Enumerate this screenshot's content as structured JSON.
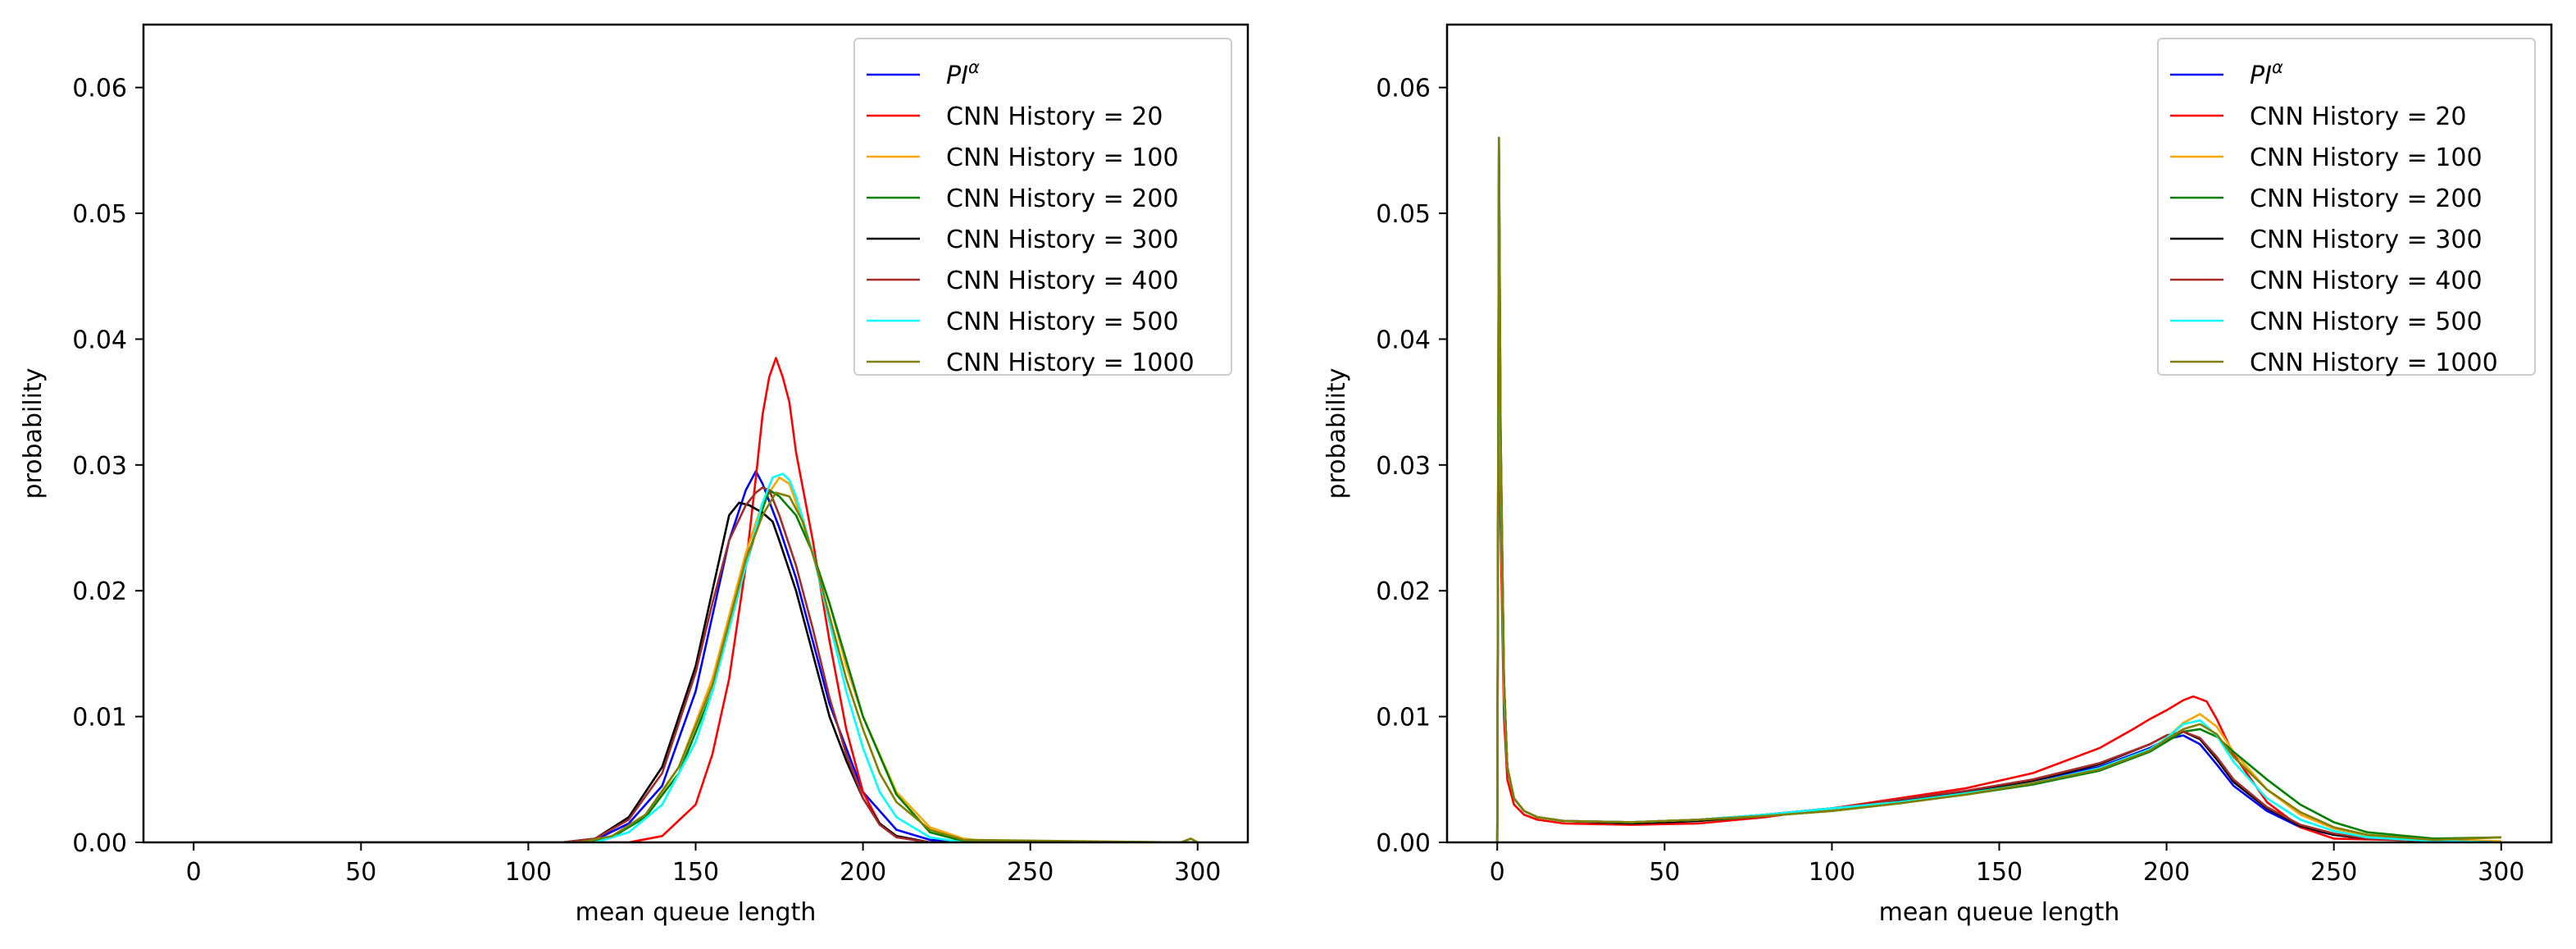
{
  "chart_data": [
    {
      "type": "line",
      "xlabel": "mean queue length",
      "ylabel": "probability",
      "xlim": [
        -15,
        315
      ],
      "ylim": [
        0,
        0.065
      ],
      "xticks": [
        0,
        50,
        100,
        150,
        200,
        250,
        300
      ],
      "yticks": [
        0.0,
        0.01,
        0.02,
        0.03,
        0.04,
        0.05,
        0.06
      ],
      "xtick_labels": [
        "0",
        "50",
        "100",
        "150",
        "200",
        "250",
        "300"
      ],
      "ytick_labels": [
        "0.00",
        "0.01",
        "0.02",
        "0.03",
        "0.04",
        "0.05",
        "0.06"
      ],
      "grid": false,
      "legend_position": "upper-right",
      "series": [
        {
          "name": "PIα",
          "legend_main": "PI",
          "legend_sup": "α",
          "color": "#0000ff",
          "x": [
            0,
            110,
            120,
            130,
            140,
            150,
            155,
            160,
            165,
            168,
            170,
            175,
            180,
            185,
            190,
            200,
            210,
            220,
            230,
            300
          ],
          "y": [
            0,
            0,
            0.0002,
            0.0015,
            0.0045,
            0.012,
            0.018,
            0.024,
            0.028,
            0.0295,
            0.0285,
            0.025,
            0.021,
            0.016,
            0.011,
            0.004,
            0.001,
            0.0002,
            0,
            0
          ]
        },
        {
          "name": "CNN History = 20",
          "color": "#ff0000",
          "x": [
            0,
            130,
            140,
            150,
            155,
            160,
            165,
            168,
            170,
            172,
            174,
            176,
            178,
            180,
            185,
            190,
            195,
            200,
            205,
            210,
            220,
            300
          ],
          "y": [
            0,
            0,
            0.0005,
            0.003,
            0.007,
            0.013,
            0.022,
            0.029,
            0.034,
            0.037,
            0.0385,
            0.037,
            0.035,
            0.031,
            0.024,
            0.016,
            0.009,
            0.004,
            0.0015,
            0.0005,
            0,
            0
          ]
        },
        {
          "name": "CNN History = 100",
          "color": "#ffa500",
          "x": [
            0,
            115,
            125,
            135,
            145,
            155,
            160,
            165,
            170,
            175,
            178,
            180,
            185,
            190,
            195,
            200,
            210,
            220,
            230,
            240,
            300
          ],
          "y": [
            0,
            0,
            0.0004,
            0.002,
            0.006,
            0.013,
            0.018,
            0.023,
            0.027,
            0.029,
            0.0285,
            0.027,
            0.023,
            0.019,
            0.014,
            0.01,
            0.004,
            0.0012,
            0.0003,
            0,
            0
          ]
        },
        {
          "name": "CNN History = 200",
          "color": "#008000",
          "x": [
            0,
            115,
            125,
            135,
            145,
            155,
            160,
            165,
            170,
            172,
            175,
            180,
            185,
            190,
            195,
            200,
            210,
            220,
            230,
            300
          ],
          "y": [
            0,
            0,
            0.0004,
            0.002,
            0.0055,
            0.012,
            0.017,
            0.022,
            0.0265,
            0.028,
            0.0275,
            0.026,
            0.023,
            0.019,
            0.0145,
            0.01,
            0.0038,
            0.0008,
            0.0001,
            0
          ]
        },
        {
          "name": "CNN History = 300",
          "color": "#000000",
          "x": [
            0,
            110,
            120,
            130,
            140,
            150,
            155,
            160,
            163,
            166,
            170,
            173,
            175,
            180,
            185,
            190,
            195,
            200,
            205,
            210,
            220,
            300
          ],
          "y": [
            0,
            0,
            0.0003,
            0.002,
            0.006,
            0.014,
            0.02,
            0.026,
            0.027,
            0.0268,
            0.0262,
            0.0255,
            0.024,
            0.02,
            0.015,
            0.01,
            0.0065,
            0.0035,
            0.0015,
            0.0005,
            0,
            0
          ]
        },
        {
          "name": "CNN History = 400",
          "color": "#a52a2a",
          "x": [
            0,
            110,
            120,
            130,
            140,
            150,
            155,
            160,
            165,
            168,
            170,
            172,
            175,
            180,
            185,
            190,
            195,
            200,
            205,
            210,
            220,
            300
          ],
          "y": [
            0,
            0,
            0.0003,
            0.0018,
            0.0055,
            0.0135,
            0.019,
            0.024,
            0.0268,
            0.0278,
            0.0282,
            0.028,
            0.026,
            0.022,
            0.017,
            0.0115,
            0.007,
            0.0035,
            0.0014,
            0.0004,
            0,
            0
          ]
        },
        {
          "name": "CNN History = 500",
          "color": "#00ffff",
          "x": [
            0,
            120,
            130,
            140,
            150,
            155,
            160,
            165,
            170,
            173,
            176,
            178,
            180,
            185,
            190,
            195,
            200,
            205,
            210,
            220,
            230,
            300
          ],
          "y": [
            0,
            0,
            0.0008,
            0.003,
            0.008,
            0.012,
            0.017,
            0.022,
            0.027,
            0.029,
            0.0293,
            0.0288,
            0.0275,
            0.023,
            0.0175,
            0.012,
            0.0075,
            0.004,
            0.002,
            0.0004,
            0,
            0
          ]
        },
        {
          "name": "CNN History = 1000",
          "color": "#808000",
          "x": [
            0,
            115,
            125,
            135,
            145,
            155,
            160,
            165,
            170,
            174,
            178,
            182,
            186,
            190,
            195,
            200,
            205,
            210,
            220,
            230,
            295,
            298,
            300
          ],
          "y": [
            0,
            0,
            0.0005,
            0.0022,
            0.006,
            0.0125,
            0.0175,
            0.0225,
            0.026,
            0.0278,
            0.0275,
            0.0255,
            0.022,
            0.018,
            0.013,
            0.009,
            0.0055,
            0.0032,
            0.001,
            0.0002,
            0,
            0.0003,
            0
          ]
        }
      ]
    },
    {
      "type": "line",
      "xlabel": "mean queue length",
      "ylabel": "probability",
      "xlim": [
        -15,
        315
      ],
      "ylim": [
        0,
        0.065
      ],
      "xticks": [
        0,
        50,
        100,
        150,
        200,
        250,
        300
      ],
      "yticks": [
        0.0,
        0.01,
        0.02,
        0.03,
        0.04,
        0.05,
        0.06
      ],
      "xtick_labels": [
        "0",
        "50",
        "100",
        "150",
        "200",
        "250",
        "300"
      ],
      "ytick_labels": [
        "0.00",
        "0.01",
        "0.02",
        "0.03",
        "0.04",
        "0.05",
        "0.06"
      ],
      "grid": false,
      "legend_position": "upper-right",
      "series": [
        {
          "name": "PIα",
          "legend_main": "PI",
          "legend_sup": "α",
          "color": "#0000ff",
          "x": [
            0,
            0.5,
            1,
            2,
            3,
            5,
            8,
            12,
            20,
            40,
            60,
            80,
            100,
            120,
            140,
            160,
            180,
            195,
            200,
            205,
            210,
            215,
            220,
            230,
            240,
            250,
            260,
            280,
            300
          ],
          "y": [
            0,
            0.05,
            0.03,
            0.012,
            0.006,
            0.0035,
            0.0025,
            0.002,
            0.0017,
            0.0016,
            0.0018,
            0.0022,
            0.0027,
            0.0033,
            0.004,
            0.0049,
            0.006,
            0.0075,
            0.0082,
            0.0085,
            0.0078,
            0.0062,
            0.0045,
            0.0025,
            0.0012,
            0.0006,
            0.0003,
            0.0001,
            0
          ]
        },
        {
          "name": "CNN History = 20",
          "color": "#ff0000",
          "x": [
            0,
            0.5,
            1,
            2,
            3,
            5,
            8,
            12,
            20,
            40,
            60,
            80,
            100,
            120,
            140,
            160,
            180,
            190,
            195,
            200,
            205,
            208,
            212,
            215,
            220,
            230,
            240,
            250,
            300
          ],
          "y": [
            0,
            0.045,
            0.025,
            0.01,
            0.005,
            0.003,
            0.0022,
            0.0018,
            0.0015,
            0.0014,
            0.0015,
            0.002,
            0.0027,
            0.0035,
            0.0043,
            0.0055,
            0.0075,
            0.009,
            0.0098,
            0.0105,
            0.0113,
            0.0116,
            0.0112,
            0.0098,
            0.007,
            0.0032,
            0.0012,
            0.0003,
            0
          ]
        },
        {
          "name": "CNN History = 100",
          "color": "#ffa500",
          "x": [
            0,
            0.5,
            1,
            2,
            3,
            5,
            8,
            12,
            20,
            40,
            60,
            80,
            100,
            120,
            140,
            160,
            180,
            195,
            200,
            205,
            210,
            215,
            220,
            230,
            240,
            250,
            260,
            280,
            300
          ],
          "y": [
            0,
            0.052,
            0.03,
            0.012,
            0.006,
            0.0035,
            0.0025,
            0.002,
            0.0017,
            0.0016,
            0.0018,
            0.0022,
            0.0026,
            0.0032,
            0.0038,
            0.0046,
            0.0058,
            0.0072,
            0.0083,
            0.0095,
            0.0102,
            0.0092,
            0.0072,
            0.0042,
            0.0022,
            0.0011,
            0.0005,
            0.0002,
            0.0001
          ]
        },
        {
          "name": "CNN History = 200",
          "color": "#008000",
          "x": [
            0,
            0.5,
            1,
            2,
            3,
            5,
            8,
            12,
            20,
            40,
            60,
            80,
            100,
            120,
            140,
            160,
            180,
            195,
            200,
            205,
            210,
            215,
            220,
            230,
            240,
            250,
            260,
            280,
            300
          ],
          "y": [
            0,
            0.055,
            0.032,
            0.013,
            0.006,
            0.0035,
            0.0025,
            0.002,
            0.0017,
            0.0016,
            0.0017,
            0.0021,
            0.0025,
            0.0031,
            0.0038,
            0.0046,
            0.0057,
            0.0072,
            0.008,
            0.0088,
            0.009,
            0.0084,
            0.0072,
            0.005,
            0.003,
            0.0016,
            0.0008,
            0.0003,
            0.0004
          ]
        },
        {
          "name": "CNN History = 300",
          "color": "#000000",
          "x": [
            0,
            0.5,
            1,
            2,
            3,
            5,
            8,
            12,
            20,
            40,
            60,
            80,
            100,
            120,
            140,
            160,
            180,
            195,
            200,
            205,
            210,
            215,
            220,
            230,
            240,
            250,
            260,
            280,
            300
          ],
          "y": [
            0,
            0.056,
            0.033,
            0.013,
            0.006,
            0.0035,
            0.0025,
            0.002,
            0.0017,
            0.0015,
            0.0017,
            0.0022,
            0.0027,
            0.0033,
            0.004,
            0.0049,
            0.0062,
            0.0078,
            0.0085,
            0.0088,
            0.0082,
            0.0066,
            0.0048,
            0.0027,
            0.0013,
            0.0006,
            0.0003,
            0.0001,
            0
          ]
        },
        {
          "name": "CNN History = 400",
          "color": "#a52a2a",
          "x": [
            0,
            0.5,
            1,
            2,
            3,
            5,
            8,
            12,
            20,
            40,
            60,
            80,
            100,
            120,
            140,
            160,
            180,
            195,
            200,
            205,
            210,
            215,
            220,
            230,
            240,
            250,
            260,
            280,
            300
          ],
          "y": [
            0,
            0.05,
            0.03,
            0.012,
            0.006,
            0.0035,
            0.0025,
            0.002,
            0.0017,
            0.0016,
            0.0018,
            0.0022,
            0.0027,
            0.0034,
            0.0041,
            0.005,
            0.0063,
            0.0078,
            0.0085,
            0.0088,
            0.0083,
            0.0068,
            0.005,
            0.0028,
            0.0014,
            0.0007,
            0.0003,
            0.0001,
            0
          ]
        },
        {
          "name": "CNN History = 500",
          "color": "#00ffff",
          "x": [
            0,
            0.5,
            1,
            2,
            3,
            5,
            8,
            12,
            20,
            40,
            60,
            80,
            100,
            120,
            140,
            160,
            180,
            195,
            200,
            205,
            210,
            215,
            220,
            230,
            240,
            250,
            260,
            280,
            300
          ],
          "y": [
            0,
            0.053,
            0.031,
            0.012,
            0.006,
            0.0035,
            0.0025,
            0.002,
            0.0017,
            0.0016,
            0.0018,
            0.0022,
            0.0027,
            0.0032,
            0.0039,
            0.0047,
            0.0059,
            0.0074,
            0.0083,
            0.0094,
            0.0097,
            0.0085,
            0.0064,
            0.0035,
            0.0018,
            0.0009,
            0.0004,
            0.0001,
            0
          ]
        },
        {
          "name": "CNN History = 1000",
          "color": "#808000",
          "x": [
            0,
            0.5,
            1,
            2,
            3,
            5,
            8,
            12,
            20,
            40,
            60,
            80,
            100,
            120,
            140,
            160,
            180,
            195,
            200,
            205,
            210,
            215,
            220,
            230,
            240,
            250,
            260,
            280,
            300
          ],
          "y": [
            0,
            0.056,
            0.033,
            0.013,
            0.006,
            0.0035,
            0.0025,
            0.002,
            0.0017,
            0.0016,
            0.0018,
            0.0021,
            0.0025,
            0.0031,
            0.0038,
            0.0047,
            0.0058,
            0.0073,
            0.0082,
            0.009,
            0.0094,
            0.0086,
            0.0068,
            0.0042,
            0.0024,
            0.0012,
            0.0006,
            0.0002,
            0.0004
          ]
        }
      ]
    }
  ]
}
